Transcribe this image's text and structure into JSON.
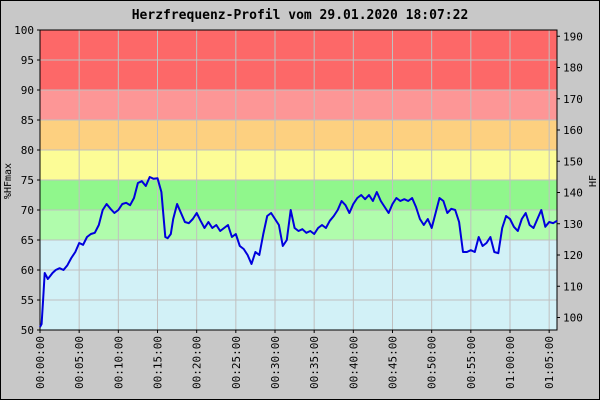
{
  "chart_data": {
    "type": "line",
    "title": "Herzfrequenz-Profil vom 29.01.2020 18:07:22",
    "ylabel": "%HFmax",
    "y2label": "HF",
    "ylim": [
      50,
      100
    ],
    "y2lim": [
      96,
      192
    ],
    "yticks": [
      "50",
      "55",
      "60",
      "65",
      "70",
      "75",
      "80",
      "85",
      "90",
      "95",
      "100"
    ],
    "y2ticks": [
      "100",
      "110",
      "120",
      "130",
      "140",
      "150",
      "160",
      "170",
      "180",
      "190"
    ],
    "xlim_min": [
      0,
      66
    ],
    "xticks": [
      "00:00:00",
      "00:05:00",
      "00:10:00",
      "00:15:00",
      "00:20:00",
      "00:25:00",
      "00:30:00",
      "00:35:00",
      "00:40:00",
      "00:45:00",
      "00:50:00",
      "00:55:00",
      "01:00:00",
      "01:05:00"
    ],
    "grid": true,
    "zones": [
      {
        "from": 50,
        "to": 65,
        "color": "#d2f1f7"
      },
      {
        "from": 65,
        "to": 70,
        "color": "#b0fcac"
      },
      {
        "from": 70,
        "to": 75,
        "color": "#90f78c"
      },
      {
        "from": 75,
        "to": 80,
        "color": "#fcfc96"
      },
      {
        "from": 80,
        "to": 85,
        "color": "#fdd080"
      },
      {
        "from": 85,
        "to": 90,
        "color": "#fd9696"
      },
      {
        "from": 90,
        "to": 100,
        "color": "#fd6868"
      }
    ],
    "line_color": "#0000dd",
    "series": [
      {
        "x": [
          0,
          0.2,
          0.4,
          0.6,
          0.8,
          1.0,
          1.3,
          1.6,
          2.0,
          2.5,
          3.0,
          3.5,
          4.0,
          4.5,
          5.0,
          5.5,
          6.0,
          6.5,
          7.0,
          7.5,
          8.0,
          8.5,
          9.0,
          9.5,
          10.0,
          10.5,
          11.0,
          11.5,
          12.0,
          12.5,
          13.0,
          13.5,
          14.0,
          14.5,
          15.0,
          15.5,
          16.0,
          16.3,
          16.7,
          17.0,
          17.5,
          18.0,
          18.5,
          19.0,
          19.5,
          20.0,
          20.5,
          21.0,
          21.5,
          22.0,
          22.5,
          23.0,
          23.5,
          24.0,
          24.5,
          25.0,
          25.5,
          26.0,
          26.5,
          27.0,
          27.5,
          28.0,
          28.5,
          29.0,
          29.5,
          30.0,
          30.5,
          31.0,
          31.5,
          32.0,
          32.5,
          33.0,
          33.5,
          34.0,
          34.5,
          35.0,
          35.5,
          36.0,
          36.5,
          37.0,
          37.5,
          38.0,
          38.5,
          39.0,
          39.5,
          40.0,
          40.5,
          41.0,
          41.5,
          42.0,
          42.5,
          43.0,
          43.5,
          44.0,
          44.5,
          45.0,
          45.5,
          46.0,
          46.5,
          47.0,
          47.5,
          48.0,
          48.5,
          49.0,
          49.5,
          50.0,
          50.5,
          51.0,
          51.5,
          52.0,
          52.5,
          53.0,
          53.5,
          54.0,
          54.5,
          55.0,
          55.5,
          56.0,
          56.5,
          57.0,
          57.5,
          58.0,
          58.5,
          59.0,
          59.5,
          60.0,
          60.5,
          61.0,
          61.5,
          62.0,
          62.5,
          63.0,
          63.5,
          64.0,
          64.5,
          65.0,
          65.5,
          66.0
        ],
        "y": [
          50.5,
          51,
          55,
          59.5,
          59,
          58.5,
          59,
          59.5,
          60,
          60.3,
          60,
          60.8,
          62,
          63,
          64.5,
          64.2,
          65.5,
          66,
          66.2,
          67.5,
          70,
          71,
          70.2,
          69.5,
          70,
          71,
          71.2,
          70.8,
          72,
          74.5,
          74.8,
          74,
          75.5,
          75.2,
          75.3,
          73,
          65.5,
          65.3,
          66,
          68.5,
          71,
          69.5,
          68,
          67.8,
          68.5,
          69.5,
          68.2,
          67,
          68,
          67,
          67.5,
          66.5,
          67,
          67.5,
          65.5,
          66,
          64,
          63.5,
          62.5,
          61,
          63,
          62.5,
          66,
          69,
          69.5,
          68.5,
          67.5,
          64,
          65,
          70,
          67,
          66.5,
          66.8,
          66.2,
          66.5,
          66,
          67,
          67.5,
          67,
          68.2,
          69,
          70,
          71.5,
          70.8,
          69.5,
          71,
          72,
          72.5,
          71.8,
          72.5,
          71.5,
          73,
          71.5,
          70.5,
          69.5,
          71,
          72,
          71.5,
          71.8,
          71.5,
          72,
          70.5,
          68.5,
          67.5,
          68.5,
          67,
          69.5,
          72,
          71.5,
          69.5,
          70.2,
          70,
          68,
          63,
          63,
          63.3,
          63,
          65.5,
          64,
          64.5,
          65.5,
          63,
          62.8,
          67,
          69,
          68.5,
          67.2,
          66.5,
          68.5,
          69.5,
          67.5,
          67,
          68.5,
          70,
          67.2,
          68,
          67.8,
          68.2
        ]
      }
    ]
  }
}
